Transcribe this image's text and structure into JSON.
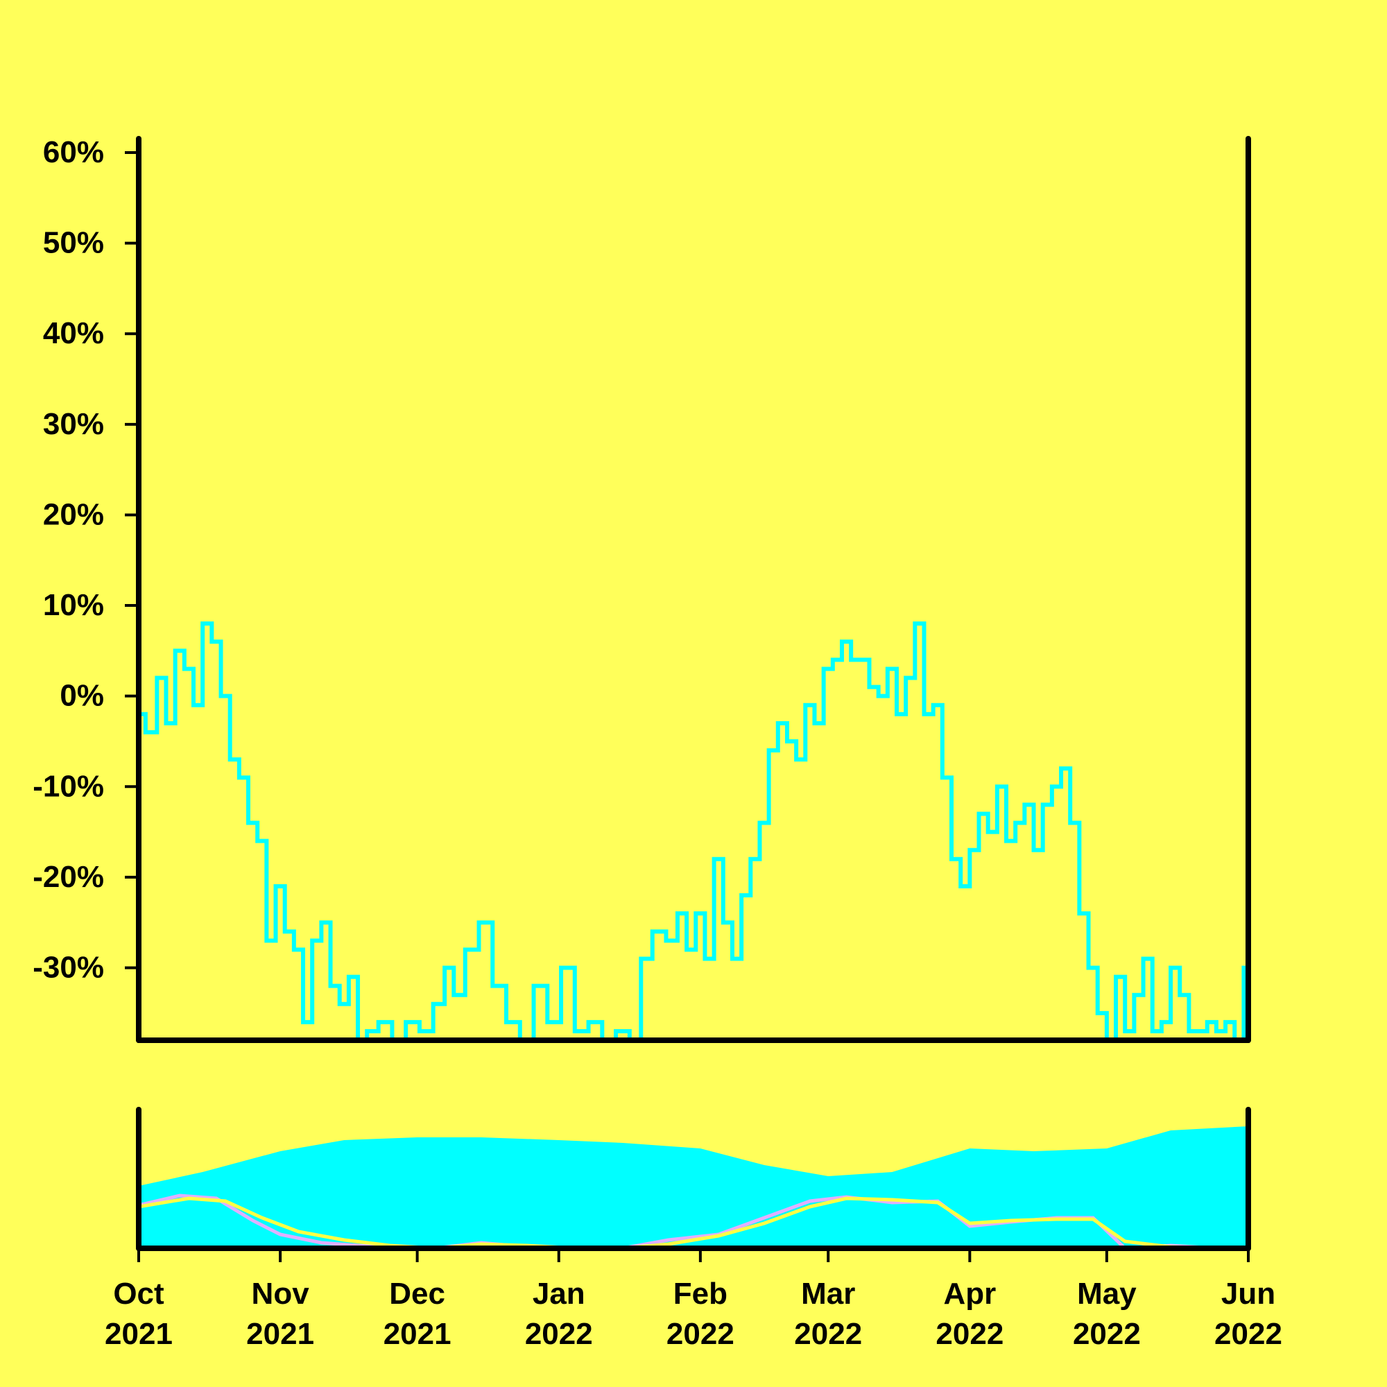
{
  "colors": {
    "background": "#ffff5a",
    "line": "#00ffff",
    "volume": "#00ffff",
    "ma_short": "#e0b0ff",
    "ma_long": "#ffff44",
    "axis": "#000000"
  },
  "chart_data": [
    {
      "type": "line",
      "panel": "price",
      "x_unit": "date",
      "xlim": [
        "2021-10-01",
        "2022-06-01"
      ],
      "ylim": [
        -38,
        60
      ],
      "y_ticks": [
        60,
        50,
        40,
        30,
        20,
        10,
        0,
        -10,
        -20,
        -30
      ],
      "y_tick_labels": [
        "60%",
        "50%",
        "40%",
        "30%",
        "20%",
        "10%",
        "0%",
        "-10%",
        "-20%",
        "-30%"
      ],
      "grid": false,
      "series": [
        {
          "x": [
            "2021-10-01",
            "2021-10-04",
            "2021-10-06",
            "2021-10-08",
            "2021-10-10",
            "2021-10-12",
            "2021-10-14",
            "2021-10-16",
            "2021-10-18",
            "2021-10-20",
            "2021-10-22",
            "2021-10-24",
            "2021-10-26",
            "2021-10-28",
            "2021-10-30",
            "2021-11-01",
            "2021-11-03",
            "2021-11-05",
            "2021-11-07",
            "2021-11-09",
            "2021-11-11",
            "2021-11-13",
            "2021-11-15",
            "2021-11-17",
            "2021-11-19",
            "2021-11-21",
            "2021-11-24",
            "2021-11-27",
            "2021-11-30",
            "2021-12-03",
            "2021-12-06",
            "2021-12-08",
            "2021-12-10",
            "2021-12-13",
            "2021-12-16",
            "2021-12-19",
            "2021-12-22",
            "2021-12-25",
            "2021-12-28",
            "2021-12-31",
            "2022-01-03",
            "2022-01-06",
            "2022-01-09",
            "2022-01-12",
            "2022-01-15",
            "2022-01-18",
            "2022-01-20",
            "2022-01-23",
            "2022-01-26",
            "2022-01-28",
            "2022-01-30",
            "2022-02-01",
            "2022-02-03",
            "2022-02-05",
            "2022-02-07",
            "2022-02-09",
            "2022-02-11",
            "2022-02-13",
            "2022-02-15",
            "2022-02-17",
            "2022-02-19",
            "2022-02-21",
            "2022-02-23",
            "2022-02-25",
            "2022-02-27",
            "2022-03-01",
            "2022-03-03",
            "2022-03-05",
            "2022-03-07",
            "2022-03-09",
            "2022-03-11",
            "2022-03-13",
            "2022-03-15",
            "2022-03-17",
            "2022-03-19",
            "2022-03-21",
            "2022-03-23",
            "2022-03-25",
            "2022-03-27",
            "2022-03-29",
            "2022-03-31",
            "2022-04-02",
            "2022-04-04",
            "2022-04-06",
            "2022-04-08",
            "2022-04-10",
            "2022-04-12",
            "2022-04-14",
            "2022-04-16",
            "2022-04-18",
            "2022-04-20",
            "2022-04-22",
            "2022-04-24",
            "2022-04-26",
            "2022-04-28",
            "2022-04-30",
            "2022-05-02",
            "2022-05-04",
            "2022-05-06",
            "2022-05-08",
            "2022-05-10",
            "2022-05-12",
            "2022-05-14",
            "2022-05-16",
            "2022-05-18",
            "2022-05-20",
            "2022-05-22",
            "2022-05-24",
            "2022-05-26",
            "2022-05-28",
            "2022-05-30",
            "2022-06-01"
          ],
          "y": [
            -2,
            -4,
            2,
            -3,
            5,
            3,
            -1,
            8,
            6,
            0,
            -7,
            -9,
            -14,
            -16,
            -27,
            -21,
            -26,
            -28,
            -36,
            -27,
            -25,
            -32,
            -34,
            -31,
            -38,
            -37,
            -36,
            -38,
            -36,
            -37,
            -34,
            -30,
            -33,
            -28,
            -25,
            -32,
            -36,
            -38,
            -32,
            -36,
            -30,
            -37,
            -36,
            -38,
            -37,
            -38,
            -29,
            -26,
            -27,
            -24,
            -28,
            -24,
            -29,
            -18,
            -25,
            -29,
            -22,
            -18,
            -14,
            -6,
            -3,
            -5,
            -7,
            -1,
            -3,
            3,
            4,
            6,
            4,
            4,
            1,
            0,
            3,
            -2,
            2,
            8,
            -2,
            -1,
            -9,
            -18,
            -21,
            -17,
            -13,
            -15,
            -10,
            -16,
            -14,
            -12,
            -17,
            -12,
            -10,
            -8,
            -14,
            -24,
            -30,
            -35,
            -38,
            -31,
            -37,
            -33,
            -29,
            -37,
            -36,
            -30,
            -33,
            -37,
            -37,
            -36,
            -37,
            -36,
            -38,
            -30
          ]
        }
      ]
    },
    {
      "type": "bar",
      "panel": "volume",
      "x_unit": "date",
      "xlim": [
        "2021-10-01",
        "2022-06-01"
      ],
      "x_ticks": [
        "2021-10-01",
        "2021-11-01",
        "2021-12-01",
        "2022-01-01",
        "2022-02-01",
        "2022-03-01",
        "2022-04-01",
        "2022-05-01",
        "2022-06-01"
      ],
      "x_tick_labels": [
        [
          "Oct",
          "2021"
        ],
        [
          "Nov",
          "2021"
        ],
        [
          "Dec",
          "2021"
        ],
        [
          "Jan",
          "2022"
        ],
        [
          "Feb",
          "2022"
        ],
        [
          "Mar",
          "2022"
        ],
        [
          "Apr",
          "2022"
        ],
        [
          "May",
          "2022"
        ],
        [
          "Jun",
          "2022"
        ]
      ],
      "ylim": [
        0,
        1
      ],
      "volume_levels": {
        "x": [
          "2021-10-01",
          "2021-10-15",
          "2021-11-01",
          "2021-11-15",
          "2021-12-01",
          "2021-12-15",
          "2022-01-01",
          "2022-01-15",
          "2022-02-01",
          "2022-02-15",
          "2022-03-01",
          "2022-03-15",
          "2022-04-01",
          "2022-04-15",
          "2022-05-01",
          "2022-05-15",
          "2022-06-01"
        ],
        "y": [
          0.45,
          0.55,
          0.7,
          0.78,
          0.8,
          0.8,
          0.78,
          0.76,
          0.72,
          0.6,
          0.52,
          0.55,
          0.72,
          0.7,
          0.72,
          0.85,
          0.88
        ]
      },
      "moving_averages": [
        {
          "x": [
            "2021-10-01",
            "2021-10-10",
            "2021-10-18",
            "2021-10-26",
            "2021-11-01",
            "2021-11-10",
            "2021-11-18",
            "2021-11-26",
            "2021-12-05",
            "2021-12-15",
            "2021-12-25",
            "2022-01-05",
            "2022-01-15",
            "2022-01-25",
            "2022-02-05",
            "2022-02-15",
            "2022-02-25",
            "2022-03-05",
            "2022-03-15",
            "2022-03-25",
            "2022-04-01",
            "2022-04-10",
            "2022-04-20",
            "2022-04-28",
            "2022-05-05",
            "2022-05-15",
            "2022-05-25",
            "2022-06-01"
          ],
          "y": [
            0.31,
            0.38,
            0.36,
            0.2,
            0.1,
            0.04,
            0.02,
            0.0,
            0.0,
            0.04,
            0.01,
            0.0,
            0.0,
            0.06,
            0.1,
            0.22,
            0.34,
            0.37,
            0.33,
            0.34,
            0.16,
            0.19,
            0.22,
            0.22,
            0.0,
            0.02,
            0.0,
            0.0
          ]
        },
        {
          "x": [
            "2021-10-01",
            "2021-10-12",
            "2021-10-20",
            "2021-10-28",
            "2021-11-05",
            "2021-11-15",
            "2021-11-25",
            "2021-12-05",
            "2021-12-15",
            "2021-12-25",
            "2022-01-05",
            "2022-01-15",
            "2022-01-25",
            "2022-02-05",
            "2022-02-15",
            "2022-02-25",
            "2022-03-05",
            "2022-03-15",
            "2022-03-25",
            "2022-04-01",
            "2022-04-10",
            "2022-04-20",
            "2022-04-28",
            "2022-05-05",
            "2022-05-15",
            "2022-05-25",
            "2022-06-01"
          ],
          "y": [
            0.3,
            0.36,
            0.34,
            0.22,
            0.12,
            0.06,
            0.02,
            0.0,
            0.03,
            0.02,
            0.0,
            0.0,
            0.03,
            0.09,
            0.18,
            0.3,
            0.36,
            0.35,
            0.33,
            0.18,
            0.2,
            0.21,
            0.21,
            0.05,
            0.01,
            0.0,
            0.0
          ]
        }
      ]
    }
  ]
}
